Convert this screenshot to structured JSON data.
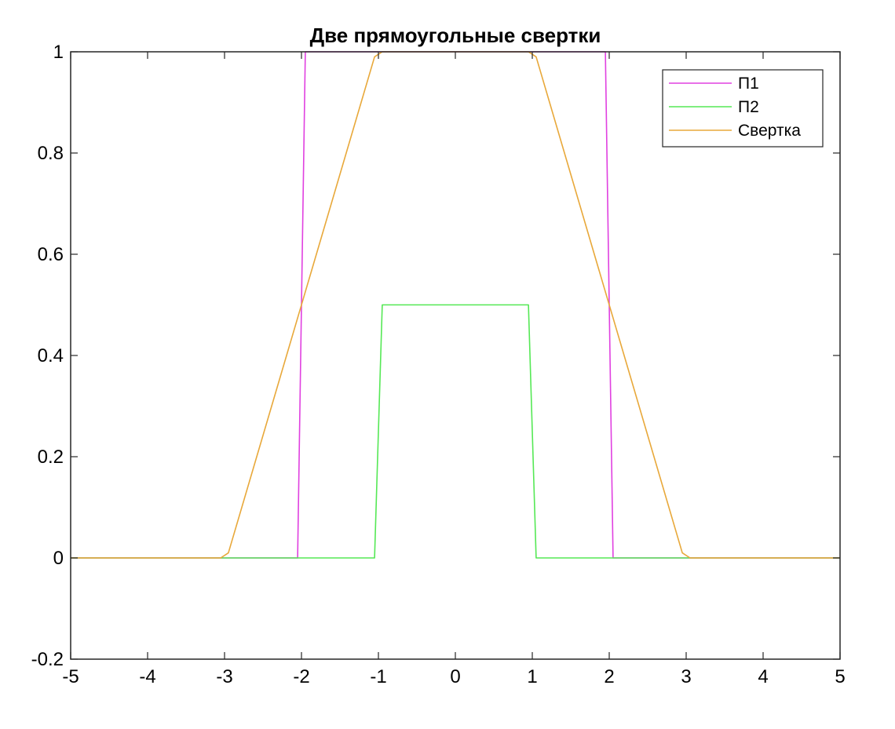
{
  "chart_data": {
    "type": "line",
    "title": "Две прямоугольные свертки",
    "xlabel": "",
    "ylabel": "",
    "xlim": [
      -5,
      5
    ],
    "ylim": [
      -0.2,
      1
    ],
    "xticks": [
      "-5",
      "-4",
      "-3",
      "-2",
      "-1",
      "0",
      "1",
      "2",
      "3",
      "4",
      "5"
    ],
    "yticks": [
      "-0.2",
      "0",
      "0.2",
      "0.4",
      "0.6",
      "0.8",
      "1"
    ],
    "grid": false,
    "legend_position": "top-right",
    "series": [
      {
        "name": "П1",
        "color": "#e040e0",
        "x": [
          -5,
          -2.05,
          -1.95,
          1.95,
          2.05,
          5
        ],
        "y": [
          0,
          0,
          1,
          1,
          0,
          0
        ]
      },
      {
        "name": "П2",
        "color": "#55e855",
        "x": [
          -5,
          -1.05,
          -0.95,
          0.95,
          1.05,
          5
        ],
        "y": [
          0,
          0,
          0.5,
          0.5,
          0,
          0
        ]
      },
      {
        "name": "Свертка",
        "color": "#e8a83a",
        "x": [
          -5,
          -3.05,
          -2.95,
          -1.05,
          -0.95,
          0.95,
          1.05,
          2.95,
          3.05,
          5
        ],
        "y": [
          0,
          0,
          0.01,
          0.99,
          1,
          1,
          0.99,
          0.01,
          0,
          0
        ]
      }
    ]
  }
}
